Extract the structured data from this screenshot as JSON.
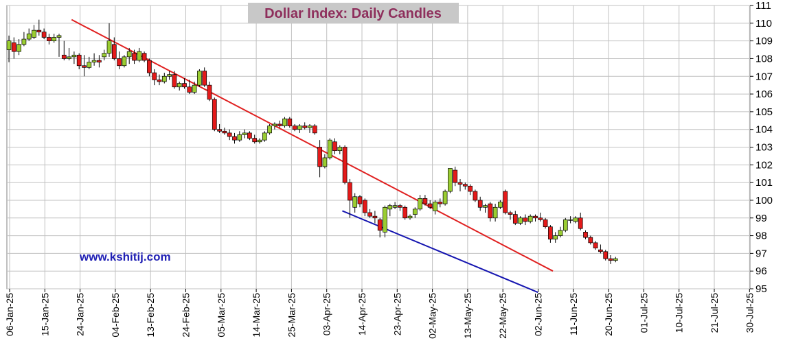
{
  "chart_data": {
    "type": "candlestick",
    "title": "Dollar Index: Daily Candles",
    "annotation": "www.kshitij.com",
    "xlabel": "",
    "ylabel": "",
    "ylim": [
      95,
      111
    ],
    "y_ticks": [
      95,
      96,
      97,
      98,
      99,
      100,
      101,
      102,
      103,
      104,
      105,
      106,
      107,
      108,
      109,
      110,
      111
    ],
    "x_ticks": [
      "06-Jan-25",
      "15-Jan-25",
      "24-Jan-25",
      "04-Feb-25",
      "13-Feb-25",
      "24-Feb-25",
      "05-Mar-25",
      "14-Mar-25",
      "25-Mar-25",
      "03-Apr-25",
      "14-Apr-25",
      "23-Apr-25",
      "02-May-25",
      "13-May-25",
      "22-May-25",
      "02-Jun-25",
      "11-Jun-25",
      "20-Jun-25",
      "01-Jul-25",
      "10-Jul-25",
      "21-Jul-25",
      "30-Jul-25"
    ],
    "grid": true,
    "up_color": "#9acd32",
    "down_color": "#e41a1a",
    "candles": [
      {
        "o": 108.5,
        "h": 109.3,
        "l": 107.8,
        "c": 109.0
      },
      {
        "o": 108.9,
        "h": 109.2,
        "l": 108.0,
        "c": 108.4
      },
      {
        "o": 108.4,
        "h": 109.1,
        "l": 108.2,
        "c": 108.8
      },
      {
        "o": 108.8,
        "h": 109.5,
        "l": 108.7,
        "c": 109.1
      },
      {
        "o": 109.1,
        "h": 109.7,
        "l": 109.0,
        "c": 109.4
      },
      {
        "o": 109.2,
        "h": 109.9,
        "l": 109.1,
        "c": 109.6
      },
      {
        "o": 109.6,
        "h": 110.2,
        "l": 109.3,
        "c": 109.5
      },
      {
        "o": 109.5,
        "h": 109.7,
        "l": 109.1,
        "c": 109.2
      },
      {
        "o": 109.2,
        "h": 109.4,
        "l": 108.8,
        "c": 109.0
      },
      {
        "o": 109.0,
        "h": 109.4,
        "l": 108.9,
        "c": 109.2
      },
      {
        "o": 109.2,
        "h": 109.4,
        "l": 108.1,
        "c": 109.3
      },
      {
        "o": 108.2,
        "h": 109.0,
        "l": 107.9,
        "c": 108.0
      },
      {
        "o": 108.0,
        "h": 108.6,
        "l": 107.9,
        "c": 108.1
      },
      {
        "o": 108.1,
        "h": 108.4,
        "l": 107.7,
        "c": 108.2
      },
      {
        "o": 108.2,
        "h": 108.3,
        "l": 107.4,
        "c": 107.6
      },
      {
        "o": 107.6,
        "h": 108.2,
        "l": 107.0,
        "c": 107.5
      },
      {
        "o": 107.5,
        "h": 108.1,
        "l": 107.4,
        "c": 107.8
      },
      {
        "o": 107.8,
        "h": 108.3,
        "l": 107.6,
        "c": 107.9
      },
      {
        "o": 107.9,
        "h": 108.2,
        "l": 107.5,
        "c": 107.8
      },
      {
        "o": 108.1,
        "h": 108.5,
        "l": 107.9,
        "c": 108.3
      },
      {
        "o": 108.3,
        "h": 110.0,
        "l": 108.1,
        "c": 109.0
      },
      {
        "o": 108.8,
        "h": 109.2,
        "l": 107.9,
        "c": 108.0
      },
      {
        "o": 108.0,
        "h": 108.4,
        "l": 107.4,
        "c": 107.6
      },
      {
        "o": 107.6,
        "h": 108.2,
        "l": 107.5,
        "c": 108.1
      },
      {
        "o": 108.1,
        "h": 108.6,
        "l": 107.7,
        "c": 108.4
      },
      {
        "o": 108.3,
        "h": 108.5,
        "l": 107.7,
        "c": 107.9
      },
      {
        "o": 107.9,
        "h": 108.6,
        "l": 107.8,
        "c": 108.4
      },
      {
        "o": 108.3,
        "h": 108.4,
        "l": 107.8,
        "c": 107.9
      },
      {
        "o": 107.9,
        "h": 108.0,
        "l": 107.0,
        "c": 107.2
      },
      {
        "o": 107.2,
        "h": 107.4,
        "l": 106.5,
        "c": 106.8
      },
      {
        "o": 106.8,
        "h": 107.1,
        "l": 106.5,
        "c": 106.7
      },
      {
        "o": 106.7,
        "h": 107.2,
        "l": 106.6,
        "c": 107.0
      },
      {
        "o": 107.0,
        "h": 107.3,
        "l": 106.8,
        "c": 107.1
      },
      {
        "o": 107.1,
        "h": 107.3,
        "l": 106.3,
        "c": 106.4
      },
      {
        "o": 106.4,
        "h": 106.7,
        "l": 106.2,
        "c": 106.6
      },
      {
        "o": 106.6,
        "h": 106.9,
        "l": 106.3,
        "c": 106.4
      },
      {
        "o": 106.4,
        "h": 106.8,
        "l": 106.0,
        "c": 106.1
      },
      {
        "o": 106.1,
        "h": 106.7,
        "l": 106.0,
        "c": 106.5
      },
      {
        "o": 106.5,
        "h": 107.4,
        "l": 106.4,
        "c": 107.3
      },
      {
        "o": 107.3,
        "h": 107.5,
        "l": 106.4,
        "c": 106.5
      },
      {
        "o": 106.5,
        "h": 106.7,
        "l": 105.6,
        "c": 105.7
      },
      {
        "o": 105.7,
        "h": 105.8,
        "l": 103.9,
        "c": 104.0
      },
      {
        "o": 104.0,
        "h": 104.3,
        "l": 103.8,
        "c": 103.9
      },
      {
        "o": 103.9,
        "h": 104.1,
        "l": 103.7,
        "c": 103.8
      },
      {
        "o": 103.8,
        "h": 104.0,
        "l": 103.4,
        "c": 103.6
      },
      {
        "o": 103.6,
        "h": 103.8,
        "l": 103.2,
        "c": 103.4
      },
      {
        "o": 103.4,
        "h": 103.9,
        "l": 103.3,
        "c": 103.7
      },
      {
        "o": 103.7,
        "h": 104.0,
        "l": 103.5,
        "c": 103.8
      },
      {
        "o": 103.8,
        "h": 103.9,
        "l": 103.4,
        "c": 103.5
      },
      {
        "o": 103.5,
        "h": 103.7,
        "l": 103.2,
        "c": 103.3
      },
      {
        "o": 103.3,
        "h": 103.5,
        "l": 103.2,
        "c": 103.4
      },
      {
        "o": 103.4,
        "h": 103.9,
        "l": 103.3,
        "c": 103.8
      },
      {
        "o": 103.8,
        "h": 104.3,
        "l": 103.7,
        "c": 104.2
      },
      {
        "o": 104.2,
        "h": 104.4,
        "l": 104.0,
        "c": 104.3
      },
      {
        "o": 104.3,
        "h": 104.5,
        "l": 104.1,
        "c": 104.2
      },
      {
        "o": 104.2,
        "h": 104.7,
        "l": 104.1,
        "c": 104.6
      },
      {
        "o": 104.6,
        "h": 104.7,
        "l": 104.1,
        "c": 104.2
      },
      {
        "o": 104.2,
        "h": 104.3,
        "l": 103.9,
        "c": 104.0
      },
      {
        "o": 104.0,
        "h": 104.3,
        "l": 103.8,
        "c": 104.2
      },
      {
        "o": 104.2,
        "h": 104.4,
        "l": 104.0,
        "c": 104.1
      },
      {
        "o": 104.1,
        "h": 104.3,
        "l": 103.8,
        "c": 104.2
      },
      {
        "o": 104.2,
        "h": 104.3,
        "l": 103.7,
        "c": 103.8
      },
      {
        "o": 103.0,
        "h": 103.4,
        "l": 101.3,
        "c": 101.9
      },
      {
        "o": 101.9,
        "h": 102.6,
        "l": 101.8,
        "c": 102.4
      },
      {
        "o": 102.4,
        "h": 103.5,
        "l": 102.3,
        "c": 103.4
      },
      {
        "o": 103.3,
        "h": 103.5,
        "l": 102.6,
        "c": 102.8
      },
      {
        "o": 102.8,
        "h": 103.1,
        "l": 102.6,
        "c": 103.0
      },
      {
        "o": 103.0,
        "h": 103.1,
        "l": 100.9,
        "c": 101.0
      },
      {
        "o": 101.0,
        "h": 101.2,
        "l": 99.0,
        "c": 100.0
      },
      {
        "o": 99.6,
        "h": 100.4,
        "l": 99.3,
        "c": 100.2
      },
      {
        "o": 100.2,
        "h": 100.3,
        "l": 99.6,
        "c": 99.8
      },
      {
        "o": 100.0,
        "h": 100.1,
        "l": 99.1,
        "c": 99.3
      },
      {
        "o": 99.3,
        "h": 99.5,
        "l": 99.0,
        "c": 99.1
      },
      {
        "o": 99.1,
        "h": 99.4,
        "l": 98.7,
        "c": 99.0
      },
      {
        "o": 98.9,
        "h": 99.0,
        "l": 97.9,
        "c": 98.3
      },
      {
        "o": 98.2,
        "h": 99.7,
        "l": 97.9,
        "c": 99.6
      },
      {
        "o": 99.5,
        "h": 99.8,
        "l": 99.1,
        "c": 99.7
      },
      {
        "o": 99.6,
        "h": 99.9,
        "l": 99.5,
        "c": 99.7
      },
      {
        "o": 99.7,
        "h": 99.8,
        "l": 99.4,
        "c": 99.6
      },
      {
        "o": 99.6,
        "h": 99.7,
        "l": 98.9,
        "c": 99.0
      },
      {
        "o": 99.0,
        "h": 99.2,
        "l": 98.9,
        "c": 99.1
      },
      {
        "o": 99.2,
        "h": 99.6,
        "l": 99.0,
        "c": 99.5
      },
      {
        "o": 99.5,
        "h": 100.3,
        "l": 99.4,
        "c": 100.1
      },
      {
        "o": 100.1,
        "h": 100.3,
        "l": 99.7,
        "c": 99.8
      },
      {
        "o": 99.8,
        "h": 100.0,
        "l": 99.5,
        "c": 99.6
      },
      {
        "o": 99.4,
        "h": 100.0,
        "l": 99.2,
        "c": 99.9
      },
      {
        "o": 99.9,
        "h": 100.1,
        "l": 99.6,
        "c": 99.8
      },
      {
        "o": 99.8,
        "h": 100.6,
        "l": 99.7,
        "c": 100.5
      },
      {
        "o": 100.5,
        "h": 101.8,
        "l": 100.4,
        "c": 101.8
      },
      {
        "o": 101.7,
        "h": 101.9,
        "l": 100.8,
        "c": 101.0
      },
      {
        "o": 101.0,
        "h": 101.2,
        "l": 100.5,
        "c": 100.9
      },
      {
        "o": 100.9,
        "h": 101.0,
        "l": 100.6,
        "c": 100.8
      },
      {
        "o": 100.8,
        "h": 100.9,
        "l": 100.3,
        "c": 100.5
      },
      {
        "o": 100.5,
        "h": 100.6,
        "l": 99.9,
        "c": 100.0
      },
      {
        "o": 100.0,
        "h": 100.2,
        "l": 99.4,
        "c": 99.6
      },
      {
        "o": 99.6,
        "h": 99.8,
        "l": 99.3,
        "c": 99.7
      },
      {
        "o": 99.8,
        "h": 99.9,
        "l": 98.8,
        "c": 99.0
      },
      {
        "o": 99.0,
        "h": 99.8,
        "l": 98.8,
        "c": 99.6
      },
      {
        "o": 99.6,
        "h": 100.0,
        "l": 99.5,
        "c": 99.9
      },
      {
        "o": 100.5,
        "h": 100.6,
        "l": 99.2,
        "c": 99.3
      },
      {
        "o": 99.3,
        "h": 99.4,
        "l": 98.9,
        "c": 99.2
      },
      {
        "o": 99.2,
        "h": 99.4,
        "l": 98.6,
        "c": 98.7
      },
      {
        "o": 98.7,
        "h": 99.1,
        "l": 98.6,
        "c": 99.0
      },
      {
        "o": 99.0,
        "h": 99.2,
        "l": 98.6,
        "c": 98.8
      },
      {
        "o": 98.8,
        "h": 99.2,
        "l": 98.7,
        "c": 99.1
      },
      {
        "o": 99.1,
        "h": 99.2,
        "l": 98.8,
        "c": 99.0
      },
      {
        "o": 99.0,
        "h": 99.3,
        "l": 98.8,
        "c": 98.9
      },
      {
        "o": 98.9,
        "h": 99.0,
        "l": 98.4,
        "c": 98.5
      },
      {
        "o": 98.5,
        "h": 98.6,
        "l": 97.6,
        "c": 97.8
      },
      {
        "o": 97.8,
        "h": 98.2,
        "l": 97.6,
        "c": 98.0
      },
      {
        "o": 98.0,
        "h": 98.5,
        "l": 97.9,
        "c": 98.3
      },
      {
        "o": 98.3,
        "h": 99.0,
        "l": 98.2,
        "c": 98.9
      },
      {
        "o": 98.9,
        "h": 99.1,
        "l": 98.7,
        "c": 98.9
      },
      {
        "o": 98.8,
        "h": 99.1,
        "l": 98.7,
        "c": 99.0
      },
      {
        "o": 99.0,
        "h": 99.3,
        "l": 98.3,
        "c": 98.4
      },
      {
        "o": 98.2,
        "h": 98.3,
        "l": 97.8,
        "c": 97.9
      },
      {
        "o": 97.9,
        "h": 98.0,
        "l": 97.5,
        "c": 97.6
      },
      {
        "o": 97.6,
        "h": 97.7,
        "l": 97.2,
        "c": 97.3
      },
      {
        "o": 97.2,
        "h": 97.5,
        "l": 97.0,
        "c": 97.1
      },
      {
        "o": 97.1,
        "h": 97.2,
        "l": 96.6,
        "c": 96.7
      },
      {
        "o": 96.7,
        "h": 96.9,
        "l": 96.4,
        "c": 96.6
      },
      {
        "o": 96.6,
        "h": 96.8,
        "l": 96.5,
        "c": 96.7
      }
    ],
    "trendlines": [
      {
        "color": "#e02020",
        "start": [
          12.5,
          110.2
        ],
        "end": [
          108.5,
          96.0
        ]
      },
      {
        "color": "#1515b0",
        "start": [
          66.5,
          99.4
        ],
        "end": [
          105.5,
          94.8
        ]
      }
    ]
  }
}
